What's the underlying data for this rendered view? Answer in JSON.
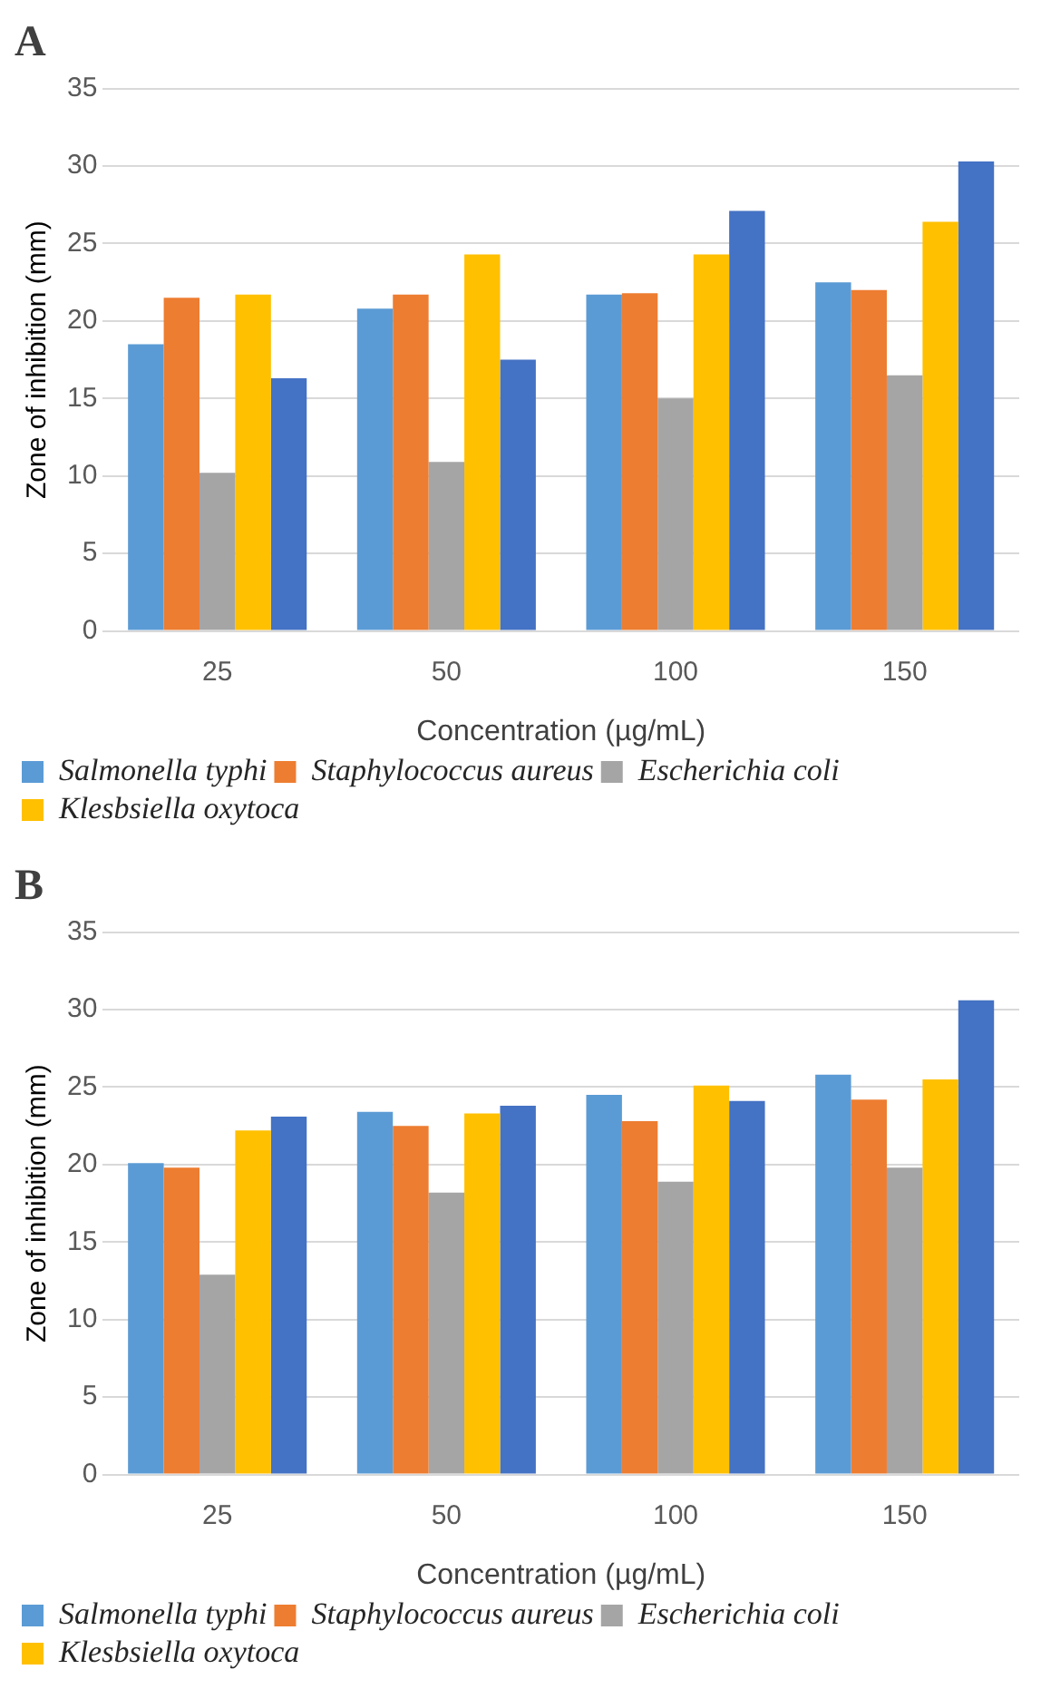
{
  "chart_data": [
    {
      "type": "bar",
      "title": "A",
      "xlabel": "Concentration (µg/mL)",
      "ylabel": "Zone of inhibition (mm)",
      "categories": [
        "25",
        "50",
        "100",
        "150"
      ],
      "series": [
        {
          "name": "Salmonella typhi",
          "color": "#5b9bd5",
          "values": [
            18.5,
            20.8,
            21.7,
            22.5
          ]
        },
        {
          "name": "Staphylococcus aureus",
          "color": "#ed7d31",
          "values": [
            21.5,
            21.7,
            21.8,
            22.0
          ]
        },
        {
          "name": "Escherichia coli",
          "color": "#a5a5a5",
          "values": [
            10.2,
            10.9,
            15.0,
            16.5
          ]
        },
        {
          "name": "Klesbsiella oxytoca",
          "color": "#ffc000",
          "values": [
            21.7,
            24.3,
            24.3,
            26.4
          ]
        },
        {
          "color": "#4472c4",
          "values": [
            16.3,
            17.5,
            27.1,
            30.3
          ]
        }
      ],
      "ylim": [
        0,
        35
      ],
      "yticks": [
        0,
        5,
        10,
        15,
        20,
        25,
        30,
        35
      ],
      "grid": "y",
      "legend": "bottom"
    },
    {
      "type": "bar",
      "title": "B",
      "xlabel": "Concentration (µg/mL)",
      "ylabel": "Zone of inhibition (mm)",
      "categories": [
        "25",
        "50",
        "100",
        "150"
      ],
      "series": [
        {
          "name": "Salmonella typhi",
          "color": "#5b9bd5",
          "values": [
            20.1,
            23.4,
            24.5,
            25.8
          ]
        },
        {
          "name": "Staphylococcus aureus",
          "color": "#ed7d31",
          "values": [
            19.8,
            22.5,
            22.8,
            24.2
          ]
        },
        {
          "name": "Escherichia coli",
          "color": "#a5a5a5",
          "values": [
            12.9,
            18.2,
            18.9,
            19.8
          ]
        },
        {
          "name": "Klesbsiella oxytoca",
          "color": "#ffc000",
          "values": [
            22.2,
            23.3,
            25.1,
            25.5
          ]
        },
        {
          "color": "#4472c4",
          "values": [
            23.1,
            23.8,
            24.1,
            30.6
          ]
        }
      ],
      "ylim": [
        0,
        35
      ],
      "yticks": [
        0,
        5,
        10,
        15,
        20,
        25,
        30,
        35
      ],
      "grid": "y",
      "legend": "bottom"
    }
  ]
}
